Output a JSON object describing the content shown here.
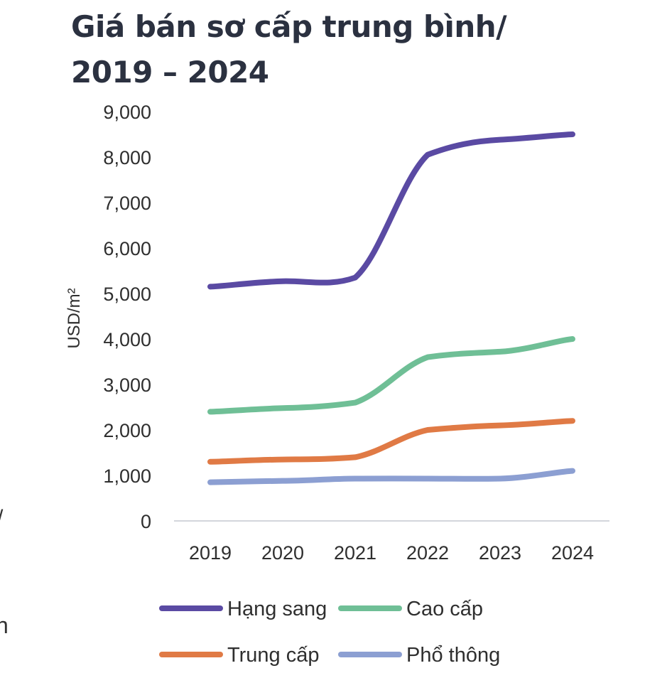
{
  "chart_data": {
    "type": "line",
    "title_line1": "Giá bán sơ cấp trung bình/",
    "title_line2": "2019 – 2024",
    "ylabel": "USD/m²",
    "xlabel": "",
    "categories": [
      "2019",
      "2020",
      "2021",
      "2022",
      "2023",
      "2024"
    ],
    "y_ticks": [
      "0",
      "1,000",
      "2,000",
      "3,000",
      "4,000",
      "5,000",
      "6,000",
      "7,000",
      "8,000",
      "9,000"
    ],
    "ylim": [
      0,
      9000
    ],
    "grid": false,
    "legend_position": "bottom",
    "series": [
      {
        "name": "Hạng sang",
        "color": "#5a4aa3",
        "values": [
          5150,
          5270,
          5350,
          8050,
          8380,
          8500
        ]
      },
      {
        "name": "Cao cấp",
        "color": "#6fbf96",
        "values": [
          2400,
          2480,
          2600,
          3600,
          3720,
          4000
        ]
      },
      {
        "name": "Trung cấp",
        "color": "#e07a45",
        "values": [
          1300,
          1350,
          1400,
          2000,
          2100,
          2200
        ]
      },
      {
        "name": "Phổ thông",
        "color": "#8c9fd2",
        "values": [
          850,
          880,
          930,
          930,
          930,
          1100
        ]
      }
    ]
  }
}
